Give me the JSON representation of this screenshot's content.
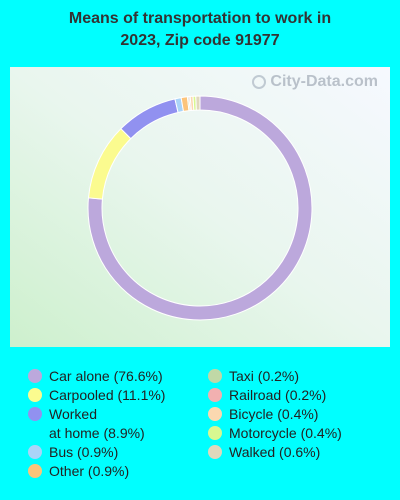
{
  "chart_data": {
    "type": "pie",
    "title_lines": [
      "Means of transportation to work in",
      "2023, Zip code 91977"
    ],
    "watermark": "City-Data.com",
    "slices": [
      {
        "label": "Car alone (76.6%)",
        "value": 76.6,
        "color": "#bca8dc"
      },
      {
        "label": "Carpooled (11.1%)",
        "value": 11.1,
        "color": "#fbfb8f"
      },
      {
        "label": "Worked\nat home (8.9%)",
        "value": 8.9,
        "color": "#9191f0"
      },
      {
        "label": "Bus (0.9%)",
        "value": 0.9,
        "color": "#aad4f8"
      },
      {
        "label": "Other (0.9%)",
        "value": 0.9,
        "color": "#fcc47b"
      },
      {
        "label": "Taxi (0.2%)",
        "value": 0.2,
        "color": "#c0d8a6"
      },
      {
        "label": "Railroad (0.2%)",
        "value": 0.2,
        "color": "#f2b0b0"
      },
      {
        "label": "Bicycle (0.4%)",
        "value": 0.4,
        "color": "#fbd8b0"
      },
      {
        "label": "Motorcycle (0.4%)",
        "value": 0.4,
        "color": "#d8f890"
      },
      {
        "label": "Walked (0.6%)",
        "value": 0.6,
        "color": "#e0d8bc"
      }
    ],
    "legend_columns": [
      [
        0,
        1,
        2,
        3,
        4
      ],
      [
        5,
        6,
        7,
        8,
        9
      ]
    ],
    "draw_order": [
      0,
      1,
      2,
      3,
      4,
      5,
      6,
      7,
      8,
      9
    ]
  }
}
